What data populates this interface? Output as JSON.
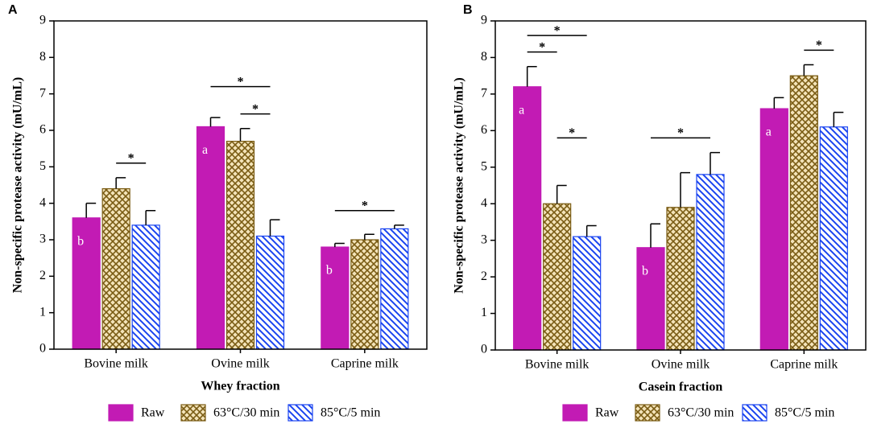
{
  "chart_data": [
    {
      "type": "bar",
      "panel": "A",
      "y_label": "Non-specific protease activity (mU/mL)",
      "x_label": "Whey fraction",
      "categories": [
        "Bovine milk",
        "Ovine milk",
        "Caprine milk"
      ],
      "series": [
        {
          "name": "Raw",
          "color": "#c21bb4",
          "pattern": "solid",
          "values": [
            3.6,
            6.1,
            2.8
          ],
          "errors": [
            0.4,
            0.25,
            0.1
          ],
          "letters": [
            "b",
            "a",
            "b"
          ]
        },
        {
          "name": "63°C/30 min",
          "color": "#7a5c14",
          "pattern": "crosshatch",
          "values": [
            4.4,
            5.7,
            3.0
          ],
          "errors": [
            0.3,
            0.35,
            0.15
          ]
        },
        {
          "name": "85°C/5 min",
          "color": "#1a44f0",
          "pattern": "stripes",
          "values": [
            3.4,
            3.1,
            3.3
          ],
          "errors": [
            0.4,
            0.45,
            0.1
          ]
        }
      ],
      "significance": [
        {
          "category": 0,
          "series": [
            1,
            2
          ],
          "label": "*"
        },
        {
          "category": 1,
          "series": [
            1,
            2
          ],
          "label": "*"
        },
        {
          "category": 1,
          "series": [
            0,
            2
          ],
          "label": "*"
        },
        {
          "category": 2,
          "series": [
            0,
            2
          ],
          "label": "*"
        }
      ],
      "ylim": [
        0,
        9
      ],
      "yticks": [
        0,
        1,
        2,
        3,
        4,
        5,
        6,
        7,
        8,
        9
      ]
    },
    {
      "type": "bar",
      "panel": "B",
      "y_label": "Non-specific protease activity (mU/mL)",
      "x_label": "Casein fraction",
      "categories": [
        "Bovine milk",
        "Ovine milk",
        "Caprine milk"
      ],
      "series": [
        {
          "name": "Raw",
          "color": "#c21bb4",
          "pattern": "solid",
          "values": [
            7.2,
            2.8,
            6.6
          ],
          "errors": [
            0.55,
            0.65,
            0.3
          ],
          "letters": [
            "a",
            "b",
            "a"
          ]
        },
        {
          "name": "63°C/30 min",
          "color": "#7a5c14",
          "pattern": "crosshatch",
          "values": [
            4.0,
            3.9,
            7.5
          ],
          "errors": [
            0.5,
            0.95,
            0.3
          ]
        },
        {
          "name": "85°C/5 min",
          "color": "#1a44f0",
          "pattern": "stripes",
          "values": [
            3.1,
            4.8,
            6.1
          ],
          "errors": [
            0.3,
            0.6,
            0.4
          ]
        }
      ],
      "significance": [
        {
          "category": 0,
          "series": [
            0,
            1
          ],
          "label": "*"
        },
        {
          "category": 0,
          "series": [
            0,
            2
          ],
          "label": "*"
        },
        {
          "category": 0,
          "series": [
            1,
            2
          ],
          "label": "*"
        },
        {
          "category": 1,
          "series": [
            0,
            2
          ],
          "label": "*"
        },
        {
          "category": 2,
          "series": [
            1,
            2
          ],
          "label": "*"
        }
      ],
      "ylim": [
        0,
        9
      ],
      "yticks": [
        0,
        1,
        2,
        3,
        4,
        5,
        6,
        7,
        8,
        9
      ]
    }
  ]
}
